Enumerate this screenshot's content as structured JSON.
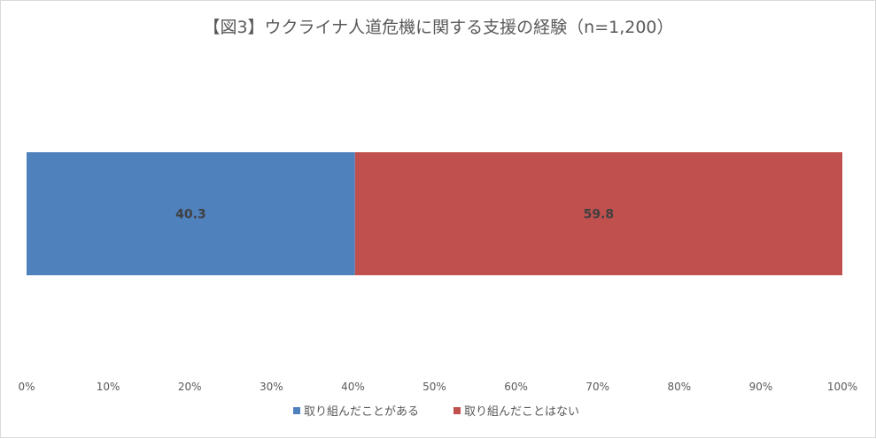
{
  "chart_data": {
    "type": "bar",
    "orientation": "horizontal",
    "stacked": true,
    "title": "【図3】ウクライナ人道危機に関する支援の経験（n=1,200）",
    "xlabel": "",
    "ylabel": "",
    "xlim": [
      0,
      100
    ],
    "grid": false,
    "legend_position": "bottom",
    "x_ticks": [
      "0%",
      "10%",
      "20%",
      "30%",
      "40%",
      "50%",
      "60%",
      "70%",
      "80%",
      "90%",
      "100%"
    ],
    "series": [
      {
        "name": "取り組んだことがある",
        "values": [
          40.3
        ],
        "color": "#4f81bd",
        "label": "40.3"
      },
      {
        "name": "取り組んだことはない",
        "values": [
          59.8
        ],
        "color": "#c0504d",
        "label": "59.8"
      }
    ]
  }
}
